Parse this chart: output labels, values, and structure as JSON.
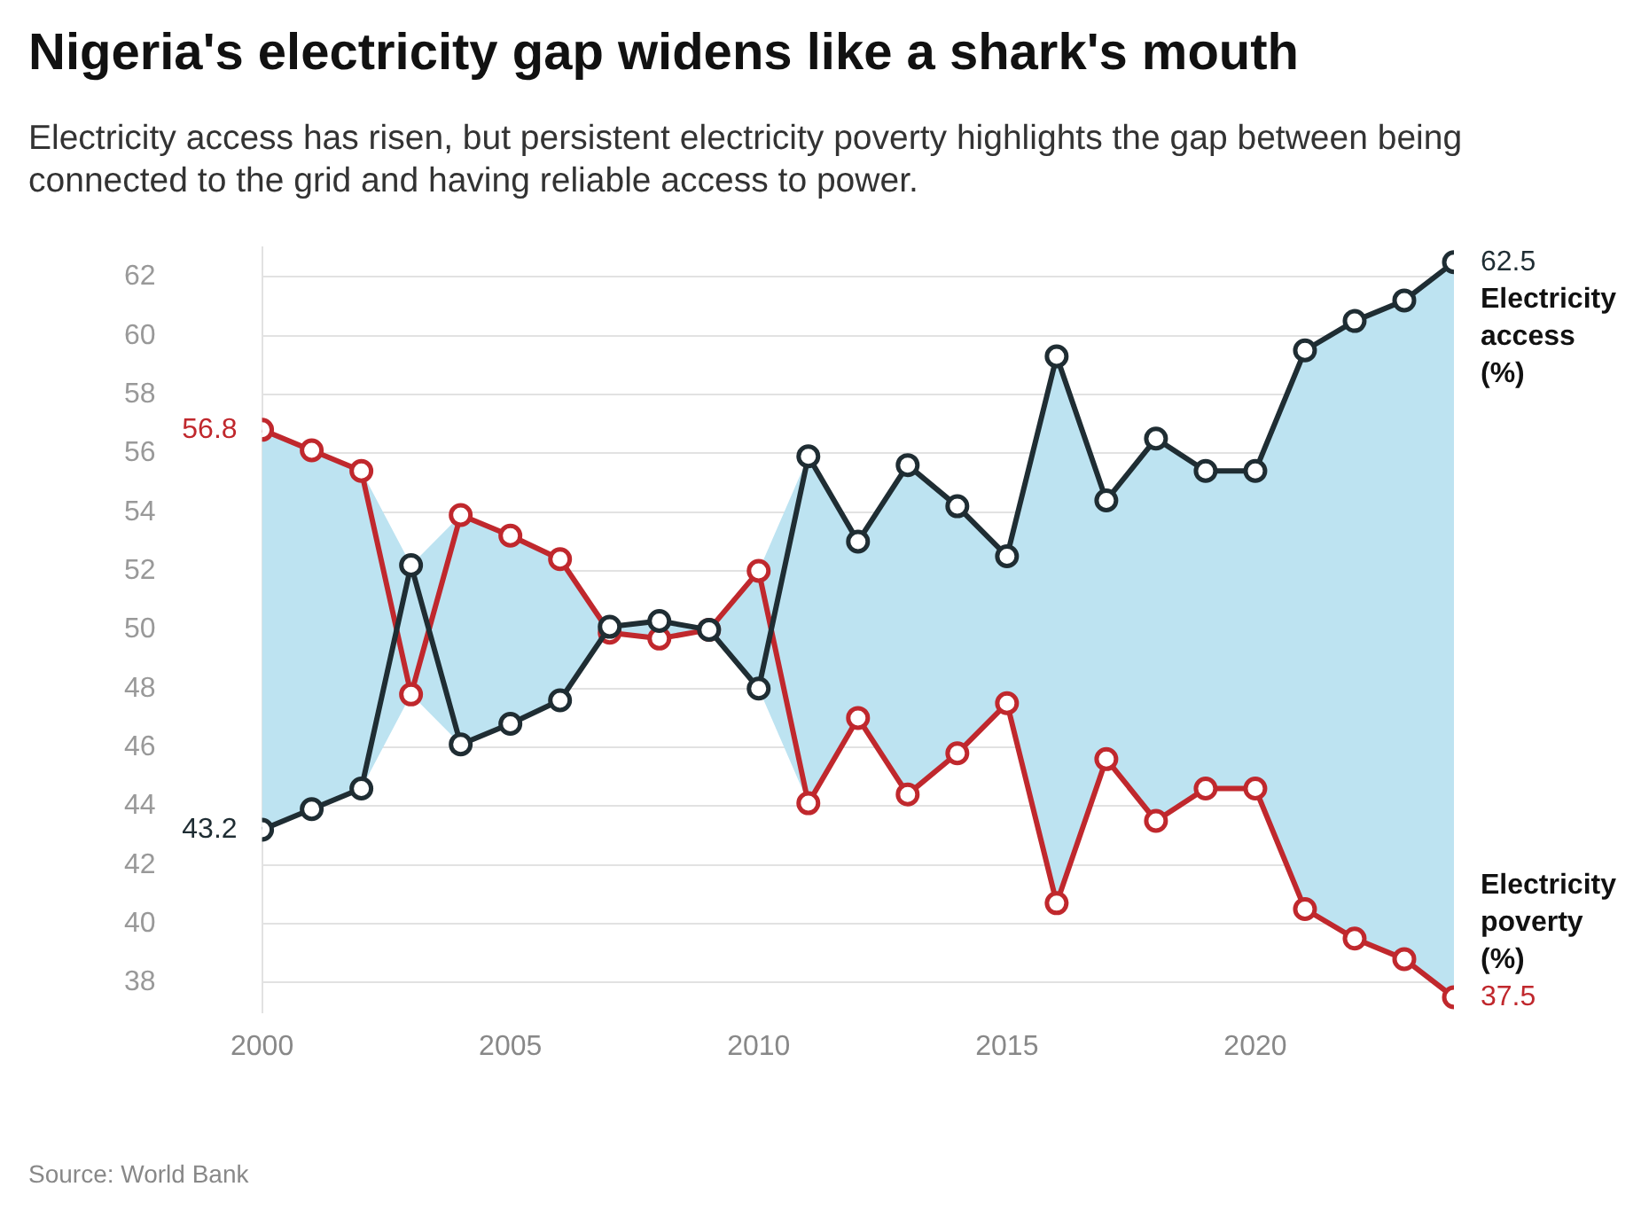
{
  "chart_data": {
    "type": "line",
    "title": "Nigeria's electricity gap widens like a shark's mouth",
    "subtitle": "Electricity access has risen, but persistent electricity poverty highlights the gap between being connected to the grid and having reliable access to power.",
    "annotations": [
      "Source: World Bank"
    ],
    "x": [
      2000,
      2001,
      2002,
      2003,
      2004,
      2005,
      2006,
      2007,
      2008,
      2009,
      2010,
      2011,
      2012,
      2013,
      2014,
      2015,
      2016,
      2017,
      2018,
      2019,
      2020,
      2021,
      2022,
      2023,
      2024
    ],
    "series": [
      {
        "name": "Electricity access (%)",
        "color": "#1f2d33",
        "values": [
          43.2,
          43.9,
          44.6,
          52.2,
          46.1,
          46.8,
          47.6,
          50.1,
          50.3,
          50.0,
          48.0,
          55.9,
          53.0,
          55.6,
          54.2,
          52.5,
          59.3,
          54.4,
          56.5,
          55.4,
          55.4,
          59.5,
          60.5,
          61.2,
          62.5
        ],
        "lower": [
          43.2,
          43.9,
          44.6,
          47.8,
          46.1,
          46.8,
          47.6,
          49.9,
          49.7,
          50.0,
          48.0,
          44.1,
          47.0,
          44.4,
          45.8,
          47.5,
          40.7,
          45.6,
          43.5,
          44.6,
          44.6,
          40.5,
          39.5,
          38.8,
          37.5
        ],
        "upper": [
          56.8,
          56.1,
          55.4,
          52.2,
          53.9,
          53.2,
          52.4,
          50.1,
          50.3,
          50.0,
          52.0,
          55.9,
          53.0,
          55.6,
          54.2,
          52.5,
          59.3,
          54.4,
          56.5,
          55.4,
          55.4,
          59.5,
          60.5,
          61.2,
          62.5
        ],
        "value_labels": [
          "43.2",
          null,
          null,
          null,
          null,
          null,
          null,
          null,
          null,
          null,
          null,
          null,
          null,
          null,
          null,
          null,
          null,
          null,
          null,
          null,
          null,
          null,
          null,
          null,
          "62.5"
        ]
      },
      {
        "name": "Electricity poverty (%)",
        "color": "#c0282d",
        "values": [
          56.8,
          56.1,
          55.4,
          47.8,
          53.9,
          53.2,
          52.4,
          49.9,
          49.7,
          50.0,
          52.0,
          44.1,
          47.0,
          44.4,
          45.8,
          47.5,
          40.7,
          45.6,
          43.5,
          44.6,
          44.6,
          40.5,
          39.5,
          38.8,
          37.5
        ],
        "value_labels": [
          "56.8",
          null,
          null,
          null,
          null,
          null,
          null,
          null,
          null,
          null,
          null,
          null,
          null,
          null,
          null,
          null,
          null,
          null,
          null,
          null,
          null,
          null,
          null,
          null,
          "37.5"
        ]
      }
    ],
    "xlim": [
      2000,
      2024
    ],
    "xticks": [
      2000,
      2005,
      2010,
      2015,
      2020
    ],
    "ylim": [
      37,
      63
    ],
    "yticks": [
      38,
      40,
      42,
      44,
      46,
      48,
      50,
      52,
      54,
      56,
      58,
      60,
      62
    ],
    "grid": "y",
    "legend": false,
    "marker": "circle",
    "line_style": "solid"
  }
}
